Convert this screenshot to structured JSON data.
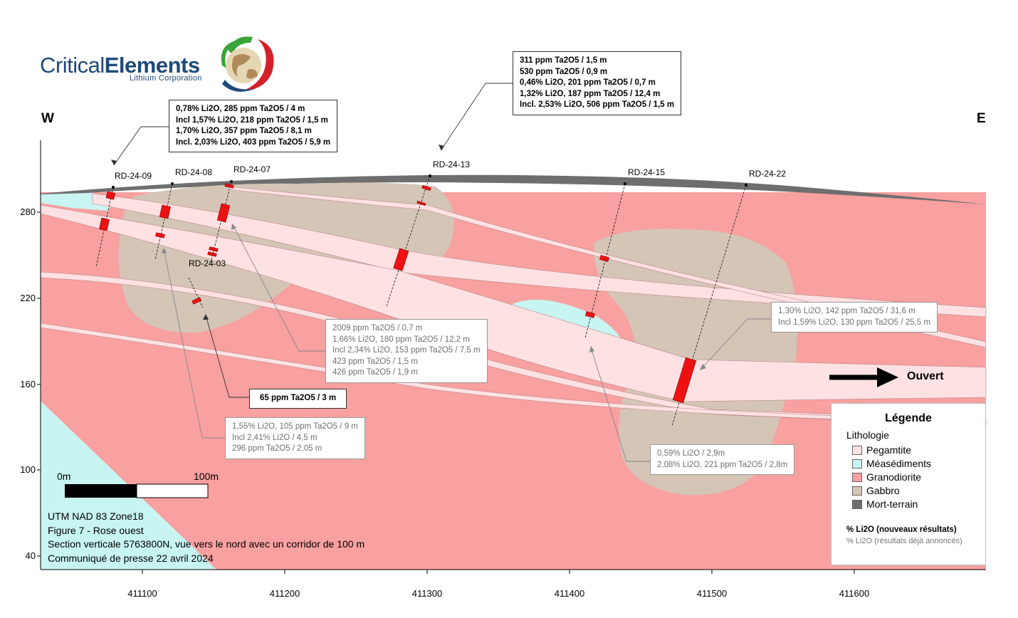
{
  "company": {
    "name_light": "Critical",
    "name_bold": "Elements",
    "subtitle": "Lithium Corporation"
  },
  "compass": {
    "west": "W",
    "east": "E"
  },
  "drillholes": [
    "RD-24-09",
    "RD-24-08",
    "RD-24-07",
    "RD-24-03",
    "RD-24-13",
    "RD-24-15",
    "RD-24-22"
  ],
  "callouts": {
    "rd09_08": [
      "0,78% Li2O, 285 ppm Ta2O5 / 4 m",
      "Incl 1,57% Li2O, 218 ppm Ta2O5 / 1,5 m",
      "1,70% Li2O, 357 ppm Ta2O5 / 8,1 m",
      "Incl. 2,03% Li2O, 403 ppm Ta2O5 / 5,9 m"
    ],
    "rd13": [
      "311 ppm Ta2O5 / 1,5 m",
      "530 ppm Ta2O5 / 0,9 m",
      "0,46% Li2O, 201 ppm Ta2O5 / 0,7 m",
      "1,32% Li2O, 187 ppm Ta2O5 / 12,4 m",
      "Incl. 2,53% Li2O, 506 ppm Ta2O5 / 1,5 m"
    ],
    "rd03_new": [
      "65 ppm Ta2O5 / 3 m"
    ],
    "rd07_old": [
      "2009 ppm Ta2O5 / 0,7 m",
      "1,66% Li2O, 180 ppm Ta2O5 / 12,2 m",
      "Incl 2,34% Li2O, 153 ppm Ta2O5 / 7,5 m",
      "423 ppm Ta2O5 / 1,5 m",
      "426 ppm Ta2O5 / 1,9 m"
    ],
    "rd08_old": [
      "1,55% Li2O, 105 ppm Ta2O5 / 9 m",
      "Incl 2,41% Li2O / 4,5 m",
      "296 ppm Ta2O5 / 2,05 m"
    ],
    "rd22_old": [
      "1,30% Li2O, 142 ppm Ta2O5 / 31,6 m",
      "Incl 1,59% Li2O, 130 ppm Ta2O5 / 25,5 m"
    ],
    "rd15_old": [
      "0,59% Li2O / 2,9m",
      "2,08% Li2O, 221 ppm Ta2O5 / 2,8m"
    ]
  },
  "axes": {
    "y_ticks": [
      "280",
      "220",
      "160",
      "100",
      "40"
    ],
    "x_ticks": [
      "411100",
      "411200",
      "411300",
      "411400",
      "411500",
      "411600"
    ]
  },
  "scale_bar": {
    "start": "0m",
    "end": "100m"
  },
  "open_label": "Ouvert",
  "caption": [
    "UTM NAD 83 Zone18",
    "Figure 7 - Rose ouest",
    "Section verticale 5763800N, vue vers le nord avec un corridor de 100 m",
    "Communiqué de presse 22 avril 2024"
  ],
  "caption_fig_prefix": "Figure 7",
  "legend": {
    "title": "Légende",
    "subtitle": "Lithologie",
    "items": [
      {
        "label": "Pegamtite",
        "color": "#fde1e3"
      },
      {
        "label": "Méasédiments",
        "color": "#c8f4f2"
      },
      {
        "label": "Granodiorite",
        "color": "#f9a0a0"
      },
      {
        "label": "Gabbro",
        "color": "#d4c5b7"
      },
      {
        "label": "Mort-terrain",
        "color": "#6e6e6e"
      }
    ],
    "note_new": "% Li2O (nouveaux résultats)",
    "note_old": "% Li2O (résultats déjà annoncés)"
  },
  "colors": {
    "granodiorite": "#f9a0a0",
    "gabbro": "#d4c5b7",
    "pegmatite": "#fde1e3",
    "metasediments": "#c8f4f2",
    "overburden": "#6e6e6e",
    "intercept": "#ee1111"
  }
}
